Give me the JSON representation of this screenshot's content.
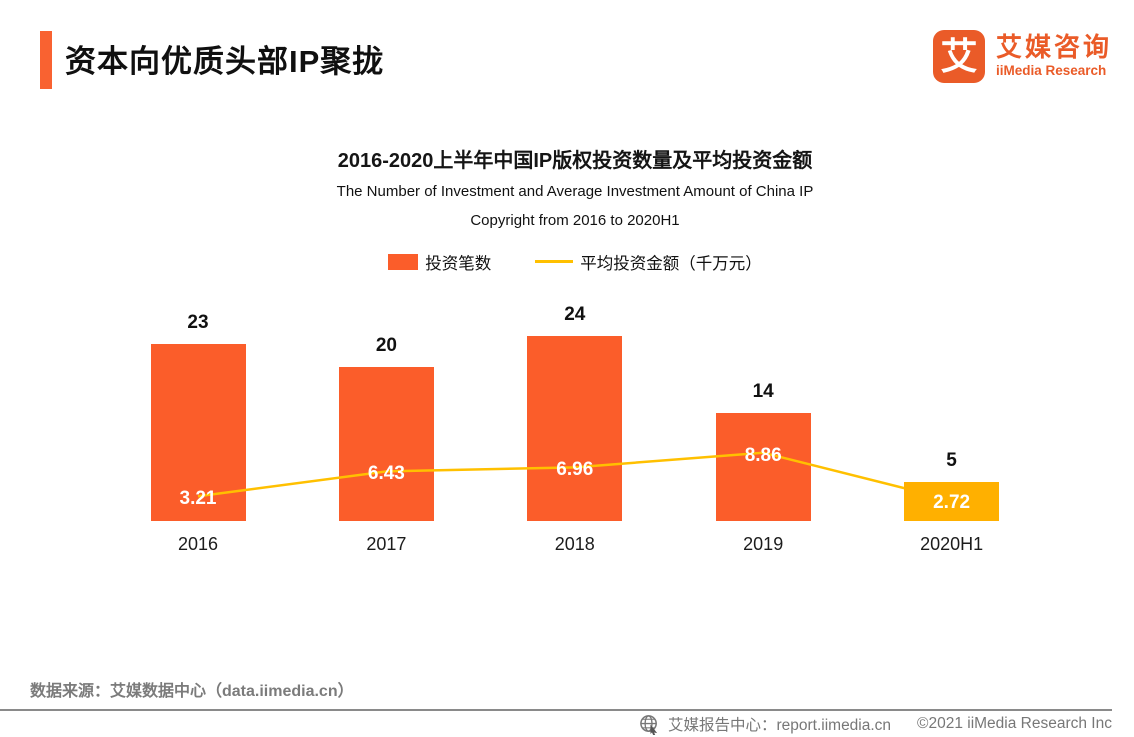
{
  "page": {
    "title": "资本向优质头部IP聚拢"
  },
  "brand": {
    "logo_glyph": "艾",
    "name_cn": "艾媒咨询",
    "name_en": "iiMedia Research",
    "color": "#EA5B28"
  },
  "chart": {
    "title": "2016-2020上半年中国IP版权投资数量及平均投资金额",
    "subtitle_line1": "The Number of Investment and Average Investment Amount of China IP",
    "subtitle_line2": "Copyright from 2016 to 2020H1"
  },
  "legend": {
    "bar_label": "投资笔数",
    "line_label": "平均投资金额（千万元）"
  },
  "chart_data": {
    "type": "bar",
    "subtype": "bar+line combo",
    "categories": [
      "2016",
      "2017",
      "2018",
      "2019",
      "2020H1"
    ],
    "series": [
      {
        "name": "投资笔数",
        "type": "bar",
        "values": [
          23,
          20,
          24,
          14,
          5
        ],
        "bar_colors": [
          "#FB5D2A",
          "#FB5D2A",
          "#FB5D2A",
          "#FB5D2A",
          "#FFB000"
        ]
      },
      {
        "name": "平均投资金额（千万元）",
        "type": "line",
        "values": [
          3.21,
          6.43,
          6.96,
          8.86,
          2.72
        ],
        "color": "#FFC000"
      }
    ],
    "title": "2016-2020上半年中国IP版权投资数量及平均投资金额",
    "xlabel": "",
    "ylabel": "",
    "ylim": [
      0,
      24
    ],
    "grid": false,
    "axes_hidden": true,
    "legend_position": "top",
    "value_labels": true
  },
  "footer": {
    "source": "数据来源：艾媒数据中心（data.iimedia.cn）",
    "report_center": "艾媒报告中心：report.iimedia.cn",
    "copyright": "©2021  iiMedia Research Inc"
  },
  "colors": {
    "bar_orange": "#FB5D2A",
    "bar_highlight_yellow": "#FFB000",
    "line_gold": "#FFC000",
    "accent_orange": "#F96231",
    "footer_gray": "#7B7B7B"
  }
}
